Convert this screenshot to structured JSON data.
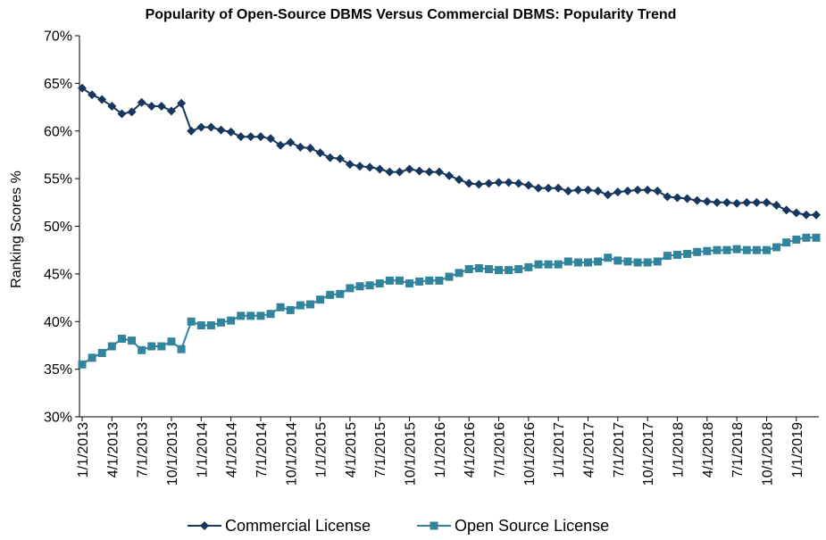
{
  "chart_data": {
    "type": "line",
    "title": "Popularity of Open-Source DBMS Versus Commercial DBMS: Popularity Trend",
    "xlabel": "",
    "ylabel": "Ranking Scores %",
    "ylim": [
      30,
      70
    ],
    "yticks": [
      "30%",
      "35%",
      "40%",
      "45%",
      "50%",
      "55%",
      "60%",
      "65%",
      "70%"
    ],
    "x_start": "1/1/2013",
    "x_tick_labels": [
      "1/1/2013",
      "4/1/2013",
      "7/1/2013",
      "10/1/2013",
      "1/1/2014",
      "4/1/2014",
      "7/1/2014",
      "10/1/2014",
      "1/1/2015",
      "4/1/2015",
      "7/1/2015",
      "10/1/2015",
      "1/1/2016",
      "4/1/2016",
      "7/1/2016",
      "10/1/2016",
      "1/1/2017",
      "4/1/2017",
      "7/1/2017",
      "10/1/2017",
      "1/1/2018",
      "4/1/2018",
      "7/1/2018",
      "10/1/2018",
      "1/1/2019"
    ],
    "grid": false,
    "legend_position": "bottom",
    "colors": {
      "commercial": "#17375e",
      "open_source": "#31849b"
    },
    "series": [
      {
        "name": "Commercial License",
        "marker": "diamond",
        "values": [
          64.5,
          63.8,
          63.3,
          62.6,
          61.8,
          62.0,
          63.0,
          62.6,
          62.6,
          62.1,
          62.9,
          60.0,
          60.4,
          60.4,
          60.1,
          59.9,
          59.4,
          59.4,
          59.4,
          59.2,
          58.5,
          58.8,
          58.3,
          58.2,
          57.7,
          57.2,
          57.1,
          56.5,
          56.3,
          56.2,
          56.0,
          55.7,
          55.7,
          56.0,
          55.8,
          55.7,
          55.7,
          55.3,
          54.9,
          54.5,
          54.4,
          54.5,
          54.6,
          54.6,
          54.5,
          54.3,
          54.0,
          54.0,
          54.0,
          53.7,
          53.8,
          53.8,
          53.7,
          53.3,
          53.6,
          53.7,
          53.8,
          53.8,
          53.7,
          53.1,
          53.0,
          52.9,
          52.7,
          52.6,
          52.5,
          52.5,
          52.4,
          52.5,
          52.5,
          52.5,
          52.2,
          51.7,
          51.4,
          51.2,
          51.2
        ]
      },
      {
        "name": "Open Source License",
        "marker": "square",
        "values": [
          35.5,
          36.2,
          36.7,
          37.4,
          38.2,
          38.0,
          37.0,
          37.4,
          37.4,
          37.9,
          37.1,
          40.0,
          39.6,
          39.6,
          39.9,
          40.1,
          40.6,
          40.6,
          40.6,
          40.8,
          41.5,
          41.2,
          41.7,
          41.8,
          42.3,
          42.8,
          42.9,
          43.5,
          43.7,
          43.8,
          44.0,
          44.3,
          44.3,
          44.0,
          44.2,
          44.3,
          44.3,
          44.7,
          45.1,
          45.5,
          45.6,
          45.5,
          45.4,
          45.4,
          45.5,
          45.7,
          46.0,
          46.0,
          46.0,
          46.3,
          46.2,
          46.2,
          46.3,
          46.7,
          46.4,
          46.3,
          46.2,
          46.2,
          46.3,
          46.9,
          47.0,
          47.1,
          47.3,
          47.4,
          47.5,
          47.5,
          47.6,
          47.5,
          47.5,
          47.5,
          47.8,
          48.3,
          48.6,
          48.8,
          48.8
        ]
      }
    ]
  }
}
